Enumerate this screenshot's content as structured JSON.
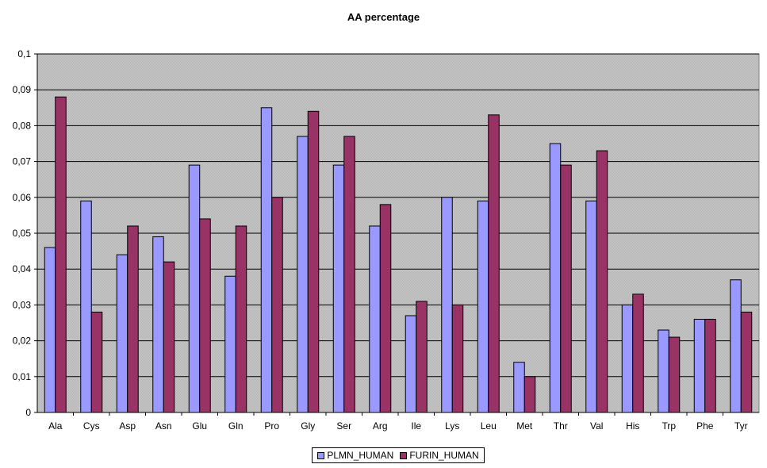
{
  "chart_data": {
    "type": "bar",
    "title": "AA percentage",
    "xlabel": "",
    "ylabel": "",
    "ylim": [
      0,
      0.1
    ],
    "yticks": [
      "0",
      "0,01",
      "0,02",
      "0,03",
      "0,04",
      "0,05",
      "0,06",
      "0,07",
      "0,08",
      "0,09",
      "0,1"
    ],
    "categories": [
      "Ala",
      "Cys",
      "Asp",
      "Asn",
      "Glu",
      "Gln",
      "Pro",
      "Gly",
      "Ser",
      "Arg",
      "Ile",
      "Lys",
      "Leu",
      "Met",
      "Thr",
      "Val",
      "His",
      "Trp",
      "Phe",
      "Tyr"
    ],
    "series": [
      {
        "name": "PLMN_HUMAN",
        "color": "#9999ff",
        "values": [
          0.046,
          0.059,
          0.044,
          0.049,
          0.069,
          0.038,
          0.085,
          0.077,
          0.069,
          0.052,
          0.027,
          0.06,
          0.059,
          0.014,
          0.075,
          0.059,
          0.03,
          0.023,
          0.026,
          0.037
        ]
      },
      {
        "name": "FURIN_HUMAN",
        "color": "#993366",
        "values": [
          0.088,
          0.028,
          0.052,
          0.042,
          0.054,
          0.052,
          0.06,
          0.084,
          0.077,
          0.058,
          0.031,
          0.03,
          0.083,
          0.01,
          0.069,
          0.073,
          0.033,
          0.021,
          0.026,
          0.028
        ]
      }
    ],
    "grid": true,
    "legend_position": "bottom"
  }
}
